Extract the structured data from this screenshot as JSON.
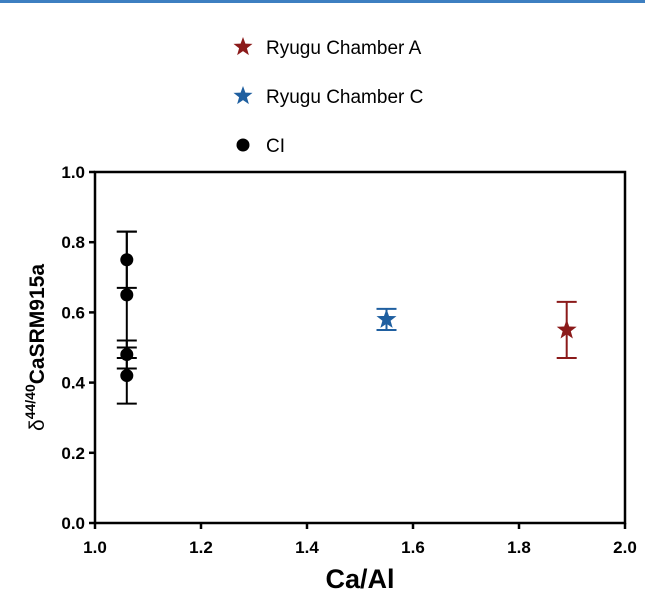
{
  "colors": {
    "top_rule": "#3d7fc1",
    "chamber_a": "#8b1a1a",
    "chamber_c": "#1f5fa0",
    "ci": "#000000",
    "axis": "#000000"
  },
  "chart_data": {
    "type": "scatter",
    "xlabel": "Ca/Al",
    "ylabel_main": "CaSRM915a",
    "ylabel_delta": "δ",
    "ylabel_sup": "44/40",
    "xlim": [
      1.0,
      2.0
    ],
    "ylim": [
      0.0,
      1.0
    ],
    "x_ticks": [
      1.0,
      1.2,
      1.4,
      1.6,
      1.8,
      2.0
    ],
    "x_tick_labels": [
      "1.0",
      "1.2",
      "1.4",
      "1.6",
      "1.8",
      "2.0"
    ],
    "y_ticks": [
      0.0,
      0.2,
      0.4,
      0.6,
      0.8,
      1.0
    ],
    "y_tick_labels": [
      "0.0",
      "0.2",
      "0.4",
      "0.6",
      "0.8",
      "1.0"
    ],
    "legend_position": "top-center",
    "series": [
      {
        "name": "Ryugu Chamber A",
        "marker": "star",
        "color": "#8b1a1a",
        "points": [
          {
            "x": 1.89,
            "y": 0.55,
            "err": 0.08
          }
        ]
      },
      {
        "name": "Ryugu Chamber C",
        "marker": "star",
        "color": "#1f5fa0",
        "points": [
          {
            "x": 1.55,
            "y": 0.58,
            "err": 0.03
          }
        ]
      },
      {
        "name": "CI",
        "marker": "circle",
        "color": "#000000",
        "points": [
          {
            "x": 1.06,
            "y": 0.75,
            "err": 0.08
          },
          {
            "x": 1.06,
            "y": 0.65,
            "err": 0.18
          },
          {
            "x": 1.06,
            "y": 0.48,
            "err": 0.04
          },
          {
            "x": 1.06,
            "y": 0.42,
            "err": 0.08
          }
        ]
      }
    ]
  }
}
